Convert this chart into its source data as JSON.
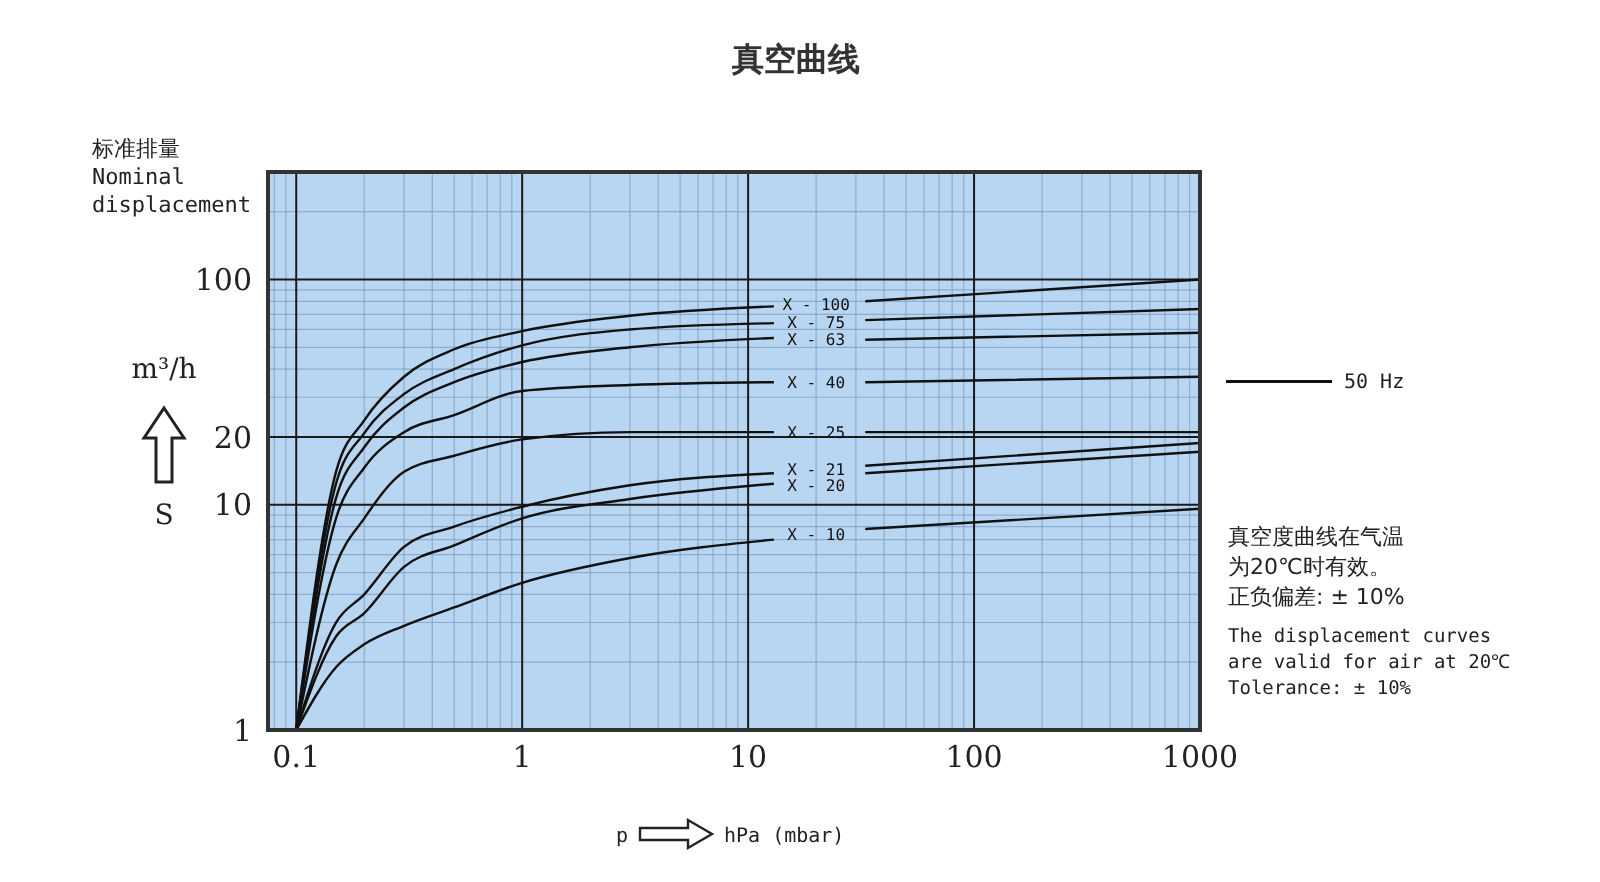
{
  "chart_data": {
    "type": "line",
    "title": "真空曲线",
    "ylabel": "标准排量\nNominal\ndisplacement",
    "xlabel": "hPa (mbar)",
    "annotations": [
      "m³/h",
      "S",
      "p",
      "50 Hz",
      "真空度曲线在气温为20℃时有效。",
      "正负偏差: ± 10%",
      "The displacement curves are valid for air at 20℃",
      "Tolerance: ± 10%"
    ],
    "x": [
      0.1,
      0.15,
      0.2,
      0.3,
      0.5,
      1,
      3,
      13,
      20,
      33,
      1000
    ],
    "series": [
      {
        "name": "X - 100",
        "color": "#111111",
        "values": [
          1,
          14,
          23.7,
          37,
          49,
          59,
          69,
          76,
          null,
          80,
          100
        ]
      },
      {
        "name": "X - 75",
        "color": "#111111",
        "values": [
          1,
          12.4,
          20.8,
          31,
          40,
          51,
          60,
          64,
          null,
          66,
          74
        ]
      },
      {
        "name": "X - 63",
        "color": "#111111",
        "values": [
          1,
          10.7,
          18,
          27,
          35,
          43,
          50,
          55,
          null,
          54,
          58
        ]
      },
      {
        "name": "X - 40",
        "color": "#111111",
        "values": [
          1,
          8.7,
          14.6,
          21,
          25,
          32,
          34,
          35,
          null,
          35,
          37
        ]
      },
      {
        "name": "X - 25",
        "color": "#111111",
        "values": [
          1,
          5.4,
          8.7,
          14,
          16.5,
          19.5,
          21,
          21,
          null,
          21,
          21
        ]
      },
      {
        "name": "X - 21",
        "color": "#111111",
        "values": [
          1,
          3,
          4,
          6.5,
          8,
          9.8,
          12.2,
          13.8,
          null,
          14.9,
          18.8
        ]
      },
      {
        "name": "X - 20",
        "color": "#111111",
        "values": [
          1,
          2.6,
          3.3,
          5.3,
          6.6,
          8.7,
          10.6,
          12.4,
          null,
          13.8,
          17.2
        ]
      },
      {
        "name": "X - 10",
        "color": "#111111",
        "values": [
          1,
          1.9,
          2.4,
          2.9,
          3.5,
          4.5,
          5.8,
          7,
          null,
          7.8,
          9.6
        ]
      }
    ],
    "log": "xy",
    "xlim": [
      0.075,
      1000
    ],
    "ylim": [
      1,
      300
    ],
    "xticks": [
      {
        "value": 0.08,
        "label": null
      },
      {
        "value": 0.09,
        "label": null
      },
      0.1,
      {
        "value": 0.2,
        "label": null
      },
      {
        "value": 0.3,
        "label": null
      },
      {
        "value": 0.4,
        "label": null
      },
      {
        "value": 0.5,
        "label": null
      },
      {
        "value": 0.6,
        "label": null
      },
      {
        "value": 0.7,
        "label": null
      },
      {
        "value": 0.8,
        "label": null
      },
      {
        "value": 0.9,
        "label": null
      },
      1,
      {
        "value": 2,
        "label": null
      },
      {
        "value": 3,
        "label": null
      },
      {
        "value": 4,
        "label": null
      },
      {
        "value": 5,
        "label": null
      },
      {
        "value": 6,
        "label": null
      },
      {
        "value": 7,
        "label": null
      },
      {
        "value": 8,
        "label": null
      },
      {
        "value": 9,
        "label": null
      },
      10,
      {
        "value": 20,
        "label": null
      },
      {
        "value": 30,
        "label": null
      },
      {
        "value": 40,
        "label": null
      },
      {
        "value": 50,
        "label": null
      },
      {
        "value": 60,
        "label": null
      },
      {
        "value": 70,
        "label": null
      },
      {
        "value": 80,
        "label": null
      },
      {
        "value": 90,
        "label": null
      },
      100,
      {
        "value": 200,
        "label": null
      },
      {
        "value": 300,
        "label": null
      },
      {
        "value": 400,
        "label": null
      },
      {
        "value": 500,
        "label": null
      },
      {
        "value": 600,
        "label": null
      },
      {
        "value": 700,
        "label": null
      },
      {
        "value": 800,
        "label": null
      },
      {
        "value": 900,
        "label": null
      },
      1000
    ],
    "yticks": [
      1,
      {
        "value": 2,
        "label": null
      },
      {
        "value": 3,
        "label": null
      },
      {
        "value": 4,
        "label": null
      },
      {
        "value": 5,
        "label": null
      },
      {
        "value": 6,
        "label": null
      },
      {
        "value": 7,
        "label": null
      },
      {
        "value": 8,
        "label": null
      },
      {
        "value": 9,
        "label": null
      },
      10,
      20,
      {
        "value": 30,
        "label": null
      },
      {
        "value": 40,
        "label": null
      },
      {
        "value": 50,
        "label": null
      },
      {
        "value": 60,
        "label": null
      },
      {
        "value": 70,
        "label": null
      },
      {
        "value": 80,
        "label": null
      },
      {
        "value": 90,
        "label": null
      },
      100,
      {
        "value": 200,
        "label": null
      }
    ],
    "grid": true,
    "line_style": "solid"
  }
}
